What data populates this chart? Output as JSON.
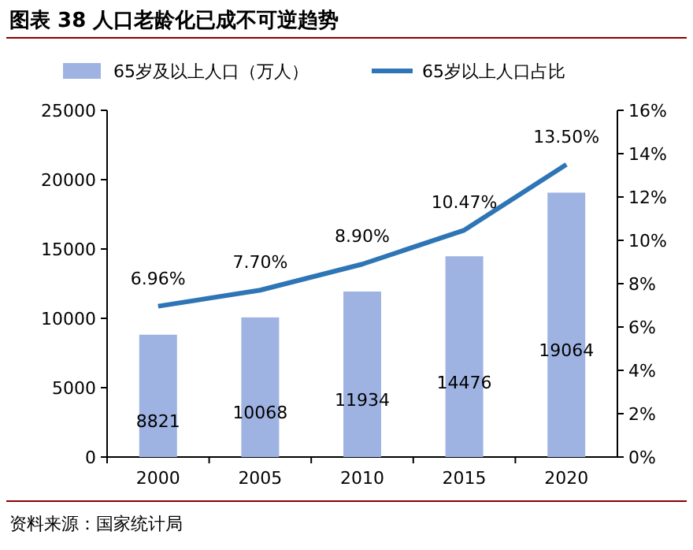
{
  "chart_data": {
    "type": "bar",
    "title": "图表 38 人口老龄化已成不可逆趋势",
    "annotations": [
      "资料来源：国家统计局"
    ],
    "categories": [
      "2000",
      "2005",
      "2010",
      "2015",
      "2020"
    ],
    "series": [
      {
        "name": "65岁及以上人口（万人）",
        "color": "#9fb3e3",
        "values": [
          8821,
          10068,
          11934,
          14476,
          19064
        ],
        "value_labels": [
          "8821",
          "10068",
          "11934",
          "14476",
          "19064"
        ]
      },
      {
        "name": "65岁以上人口占比",
        "type": "line",
        "axis": "y2",
        "color": "#2e75b6",
        "values": [
          6.96,
          7.7,
          8.9,
          10.47,
          13.5
        ],
        "value_labels": [
          "6.96%",
          "7.70%",
          "8.90%",
          "10.47%",
          "13.50%"
        ]
      }
    ],
    "ylim": [
      0,
      25000
    ],
    "yticks": [
      0,
      5000,
      10000,
      15000,
      20000,
      25000
    ],
    "y2lim": [
      0,
      16
    ],
    "y2ticks": [
      {
        "value": 0,
        "label": "0%"
      },
      {
        "value": 2,
        "label": "2%"
      },
      {
        "value": 4,
        "label": "4%"
      },
      {
        "value": 6,
        "label": "6%"
      },
      {
        "value": 8,
        "label": "8%"
      },
      {
        "value": 10,
        "label": "10%"
      },
      {
        "value": 12,
        "label": "12%"
      },
      {
        "value": 14,
        "label": "14%"
      },
      {
        "value": 16,
        "label": "16%"
      }
    ],
    "legend": "top",
    "marker": "none",
    "line_style": "solid"
  }
}
